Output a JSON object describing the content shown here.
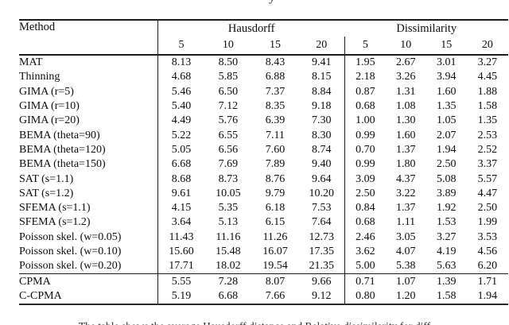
{
  "page": {
    "top_fragment": "y",
    "caption_fragment": "The table shows the average Hausdorff distance and Relative dissimilarity for diff"
  },
  "table": {
    "method_header": "Method",
    "group_headers": [
      "Hausdorff",
      "Dissimilarity"
    ],
    "sub_headers": [
      "5",
      "10",
      "15",
      "20",
      "5",
      "10",
      "15",
      "20"
    ],
    "rows": [
      {
        "method": "MAT",
        "values": [
          "8.13",
          "8.50",
          "8.43",
          "9.41",
          "1.95",
          "2.67",
          "3.01",
          "3.27"
        ],
        "bold": []
      },
      {
        "method": "Thinning",
        "values": [
          "4.68",
          "5.85",
          "6.88",
          "8.15",
          "2.18",
          "3.26",
          "3.94",
          "4.45"
        ],
        "bold": []
      },
      {
        "method": "GIMA (r=5)",
        "values": [
          "5.46",
          "6.50",
          "7.37",
          "8.84",
          "0.87",
          "1.31",
          "1.60",
          "1.88"
        ],
        "bold": []
      },
      {
        "method": "GIMA (r=10)",
        "values": [
          "5.40",
          "7.12",
          "8.35",
          "9.18",
          "0.68",
          "1.08",
          "1.35",
          "1.58"
        ],
        "bold": [
          4
        ]
      },
      {
        "method": "GIMA (r=20)",
        "values": [
          "4.49",
          "5.76",
          "6.39",
          "7.30",
          "1.00",
          "1.30",
          "1.05",
          "1.35"
        ],
        "bold": [
          3,
          6,
          7
        ]
      },
      {
        "method": "BEMA (theta=90)",
        "values": [
          "5.22",
          "6.55",
          "7.11",
          "8.30",
          "0.99",
          "1.60",
          "2.07",
          "2.53"
        ],
        "bold": []
      },
      {
        "method": "BEMA (theta=120)",
        "values": [
          "5.05",
          "6.56",
          "7.60",
          "8.74",
          "0.70",
          "1.37",
          "1.94",
          "2.52"
        ],
        "bold": []
      },
      {
        "method": "BEMA (theta=150)",
        "values": [
          "6.68",
          "7.69",
          "7.89",
          "9.40",
          "0.99",
          "1.80",
          "2.50",
          "3.37"
        ],
        "bold": []
      },
      {
        "method": "SAT (s=1.1)",
        "values": [
          "8.68",
          "8.73",
          "8.76",
          "9.64",
          "3.09",
          "4.37",
          "5.08",
          "5.57"
        ],
        "bold": []
      },
      {
        "method": "SAT (s=1.2)",
        "values": [
          "9.61",
          "10.05",
          "9.79",
          "10.20",
          "2.50",
          "3.22",
          "3.89",
          "4.47"
        ],
        "bold": []
      },
      {
        "method": "SFEMA (s=1.1)",
        "values": [
          "4.15",
          "5.35",
          "6.18",
          "7.53",
          "0.84",
          "1.37",
          "1.92",
          "2.50"
        ],
        "bold": []
      },
      {
        "method": "SFEMA (s=1.2)",
        "values": [
          "3.64",
          "5.13",
          "6.15",
          "7.64",
          "0.68",
          "1.11",
          "1.53",
          "1.99"
        ],
        "bold": [
          0,
          1,
          2
        ]
      },
      {
        "method": "Poisson skel. (w=0.05)",
        "values": [
          "11.43",
          "11.16",
          "11.26",
          "12.73",
          "2.46",
          "3.05",
          "3.27",
          "3.53"
        ],
        "bold": []
      },
      {
        "method": "Poisson skel. (w=0.10)",
        "values": [
          "15.60",
          "15.48",
          "16.07",
          "17.35",
          "3.62",
          "4.07",
          "4.19",
          "4.56"
        ],
        "bold": []
      },
      {
        "method": "Poisson skel. (w=0.20)",
        "values": [
          "17.71",
          "18.02",
          "19.54",
          "21.35",
          "5.00",
          "5.38",
          "5.63",
          "6.20"
        ],
        "bold": []
      },
      {
        "method": "CPMA",
        "values": [
          "5.55",
          "7.28",
          "8.07",
          "9.66",
          "0.71",
          "1.07",
          "1.39",
          "1.71"
        ],
        "bold": [
          5
        ],
        "rule_above": true
      },
      {
        "method": "C-CPMA",
        "values": [
          "5.19",
          "6.68",
          "7.66",
          "9.12",
          "0.80",
          "1.20",
          "1.58",
          "1.94"
        ],
        "bold": []
      }
    ]
  }
}
